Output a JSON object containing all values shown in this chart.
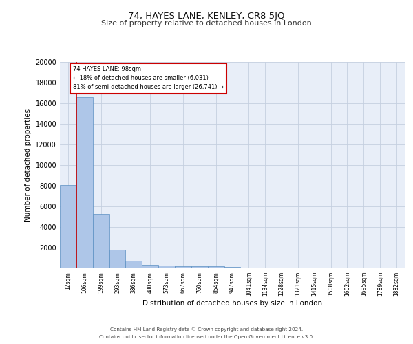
{
  "title1": "74, HAYES LANE, KENLEY, CR8 5JQ",
  "title2": "Size of property relative to detached houses in London",
  "xlabel": "Distribution of detached houses by size in London",
  "ylabel": "Number of detached properties",
  "bin_labels": [
    "12sqm",
    "106sqm",
    "199sqm",
    "293sqm",
    "386sqm",
    "480sqm",
    "573sqm",
    "667sqm",
    "760sqm",
    "854sqm",
    "947sqm",
    "1041sqm",
    "1134sqm",
    "1228sqm",
    "1321sqm",
    "1415sqm",
    "1508sqm",
    "1602sqm",
    "1695sqm",
    "1789sqm",
    "1882sqm"
  ],
  "bar_heights": [
    8100,
    16600,
    5300,
    1800,
    750,
    350,
    280,
    230,
    200,
    180,
    120,
    80,
    60,
    40,
    30,
    20,
    15,
    10,
    8,
    5,
    3
  ],
  "bar_color": "#aec6e8",
  "bar_edge_color": "#5a8fc2",
  "background_color": "#e8eef8",
  "grid_color": "#c5cfe0",
  "red_line_color": "#cc0000",
  "annotation_text1": "74 HAYES LANE: 98sqm",
  "annotation_text2": "← 18% of detached houses are smaller (6,031)",
  "annotation_text3": "81% of semi-detached houses are larger (26,741) →",
  "annotation_box_color": "#ffffff",
  "annotation_box_edge": "#cc0000",
  "footer1": "Contains HM Land Registry data © Crown copyright and database right 2024.",
  "footer2": "Contains public sector information licensed under the Open Government Licence v3.0.",
  "ylim": [
    0,
    20000
  ],
  "yticks": [
    0,
    2000,
    4000,
    6000,
    8000,
    10000,
    12000,
    14000,
    16000,
    18000,
    20000
  ]
}
